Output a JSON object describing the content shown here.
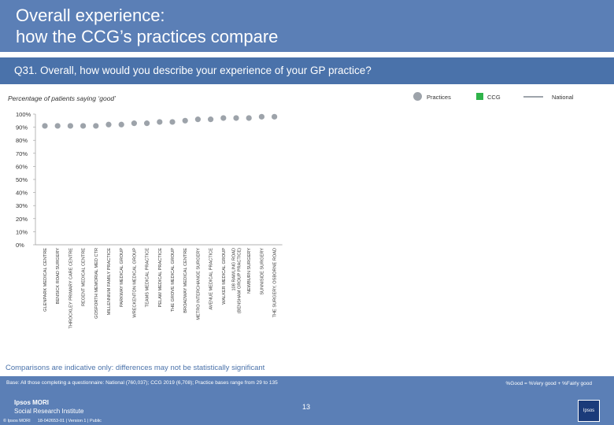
{
  "header": {
    "title": "Overall experience:\nhow the CCG’s practices compare",
    "question": "Q31. Overall, how would you describe your experience of your GP practice?"
  },
  "subtitle": "Percentage of patients saying ‘good’",
  "legend": {
    "practices": "Practices",
    "ccg": "CCG",
    "national": "National"
  },
  "colors": {
    "practices": "#9da3aa",
    "ccg": "#2fb34a",
    "national": "#9ea4ab",
    "header": "#5b7fb6",
    "question_bar": "#4a72aa"
  },
  "chart_data": {
    "type": "scatter",
    "title": "Q31. Overall, how would you describe your experience of your GP practice?",
    "ylabel": "Percentage of patients saying ‘good’",
    "ylim": [
      0,
      100
    ],
    "ytick_labels": [
      "0%",
      "10%",
      "20%",
      "30%",
      "40%",
      "50%",
      "60%",
      "70%",
      "80%",
      "90%",
      "100%"
    ],
    "grid": false,
    "legend_position": "top-right",
    "categories": [
      "GLENPARK MEDICAL CENTRE",
      "BENSICK ROAD SURGERY",
      "THROCKLEY PRIMARY CARE CENTRE",
      "REGENT MEDICAL CENTRE",
      "GOSFORTH MEMORIAL MED CTR",
      "MILLENNIUM FAMILY PRACTICE",
      "PARKWAY MEDICAL GROUP",
      "WRECKENTON MEDICAL GROUP",
      "TEAMS MEDICAL PRACTICE",
      "PELAW MEDICAL PRACTICE",
      "THE GROVE MEDICAL GROUP",
      "BROADWAY MEDICAL CENTRE",
      "METRO INTERCHANGE SURGERY",
      "AVENUE MEDICAL PRACTICE",
      "WALKER MEDICAL GROUP",
      "108 RAWLING ROAD (BENSHAM GROUP PRACTICE)",
      "NEWBURN SURGERY",
      "SUNNISIDE SURGERY",
      "THE SURGERY, OSBORNE ROAD"
    ],
    "series": [
      {
        "name": "Practices",
        "values": [
          91,
          91,
          91,
          91,
          91,
          92,
          92,
          93,
          93,
          94,
          94,
          95,
          96,
          96,
          97,
          97,
          97,
          98,
          98
        ]
      }
    ]
  },
  "note": "Comparisons are indicative only: differences may not be statistically significant",
  "footer": {
    "base": "Base: All those completing a questionnaire: National (760,037); CCG 2019 (6,708); Practice bases range from 29 to 135",
    "good_def": "%Good = %Very good + %Fairly good",
    "logo_line1": "Ipsos MORI",
    "logo_line2": "Social Research Institute",
    "copyright": "© Ipsos MORI",
    "job": "18-042653-01 | Version 1 | Public",
    "page": "13",
    "ipsos": "Ipsos"
  }
}
